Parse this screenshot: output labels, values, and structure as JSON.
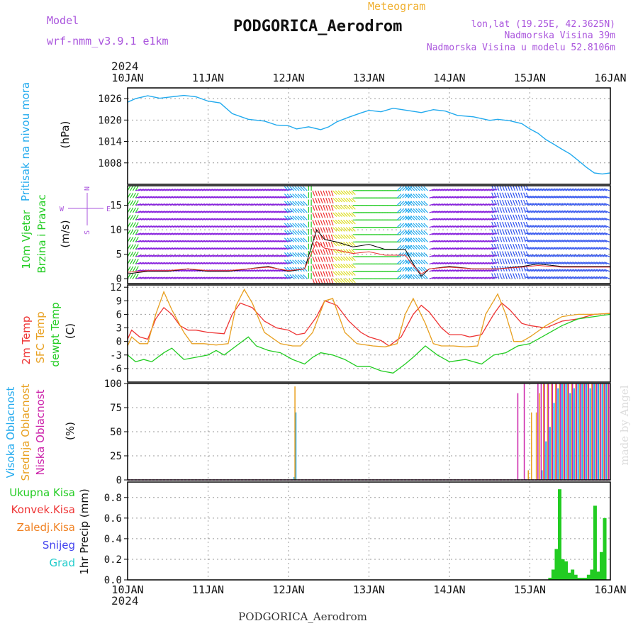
{
  "header": {
    "model_label": "Model",
    "model_name": "wrf-nmm_v3.9.1 e1km",
    "meteogram_label": "Meteogram",
    "station_title": "PODGORICA_Aerodrom",
    "lonlat": "lon,lat (19.25E, 42.3625N)",
    "elevation": "Nadmorska Visina 39m",
    "model_elevation": "Nadmorska Visina u modelu 52.8106m"
  },
  "footer": {
    "station": "PODGORICA_Aerodrom",
    "credit": "made by Angel"
  },
  "colors": {
    "pressure": "#22aaee",
    "temp2m": "#ee3333",
    "sfc_temp": "#e8a020",
    "dewpoint": "#22cc22",
    "high_cloud": "#22aaee",
    "mid_cloud": "#e8a020",
    "low_cloud": "#cc22aa",
    "total_precip": "#22cc22",
    "conv_precip": "#ee3333",
    "freezing": "#f08020",
    "snow": "#4444ee",
    "hail": "#22cccc",
    "model_text": "#aa55dd",
    "meteogram_text": "#f0b030",
    "credit": "#dddddd"
  },
  "chart_data": [
    {
      "panel": "pressure",
      "type": "line",
      "x_ticks": [
        "10JAN",
        "11JAN",
        "12JAN",
        "13JAN",
        "14JAN",
        "15JAN",
        "16JAN"
      ],
      "top_year": "2024",
      "ylabel_main": "Pritisak na nivou mora",
      "ylabel_unit": "(hPa)",
      "yticks": [
        1008,
        1014,
        1020,
        1026
      ],
      "ylim": [
        1002,
        1029
      ],
      "x": [
        0,
        0.1,
        0.25,
        0.4,
        0.55,
        0.7,
        0.85,
        1.0,
        1.15,
        1.3,
        1.5,
        1.7,
        1.85,
        2.0,
        2.1,
        2.25,
        2.4,
        2.5,
        2.6,
        2.75,
        2.9,
        3.0,
        3.15,
        3.3,
        3.5,
        3.65,
        3.8,
        3.95,
        4.1,
        4.3,
        4.5,
        4.6,
        4.75,
        4.9,
        5.0,
        5.1,
        5.2,
        5.3,
        5.4,
        5.5,
        5.6,
        5.7,
        5.8,
        5.9,
        6.0
      ],
      "values": [
        1025,
        1026,
        1026.8,
        1026.1,
        1026.5,
        1026.9,
        1026.5,
        1025.3,
        1024.8,
        1021.8,
        1020.2,
        1019.7,
        1018.6,
        1018.4,
        1017.5,
        1018.1,
        1017.3,
        1018.1,
        1019.5,
        1020.8,
        1022,
        1022.7,
        1022.3,
        1023.3,
        1022.6,
        1022.1,
        1022.9,
        1022.5,
        1021.3,
        1020.9,
        1019.9,
        1020.2,
        1019.8,
        1019,
        1017.5,
        1016.3,
        1014.5,
        1013.2,
        1011.8,
        1010.5,
        1008.7,
        1006.8,
        1005.2,
        1004.9,
        1005.2
      ]
    },
    {
      "panel": "wind",
      "type": "line",
      "ylabel_lines": [
        "10m Vjetar",
        "Brzina i Pravac"
      ],
      "ylabel_unit": "(m/s)",
      "compass": {
        "n": "N",
        "w": "W",
        "e": "E",
        "s": "S"
      },
      "yticks": [
        0,
        5,
        10,
        15
      ],
      "ylim": [
        -1,
        19
      ],
      "speed_x": [
        0,
        0.25,
        0.5,
        0.75,
        1.0,
        1.25,
        1.5,
        1.75,
        2.0,
        2.2,
        2.35,
        2.45,
        2.6,
        2.8,
        3.0,
        3.2,
        3.45,
        3.55,
        3.65,
        3.75,
        4.0,
        4.3,
        4.6,
        4.9,
        5.1,
        5.4,
        5.7,
        6.0
      ],
      "speed_values": [
        1,
        1.5,
        1.5,
        2,
        1.5,
        1.5,
        2,
        2.5,
        1.5,
        2,
        10,
        8,
        7.5,
        6.5,
        7,
        6,
        6,
        3,
        0.5,
        2,
        2.5,
        2,
        2,
        2.5,
        3,
        2.5,
        2.5,
        2.5
      ],
      "direction_bands": [
        {
          "from": 0,
          "to": 0.1,
          "direction": "mixed",
          "color": "#22cc22"
        },
        {
          "from": 0.1,
          "to": 2.0,
          "direction": "WNW",
          "color": "#8822dd"
        },
        {
          "from": 2.0,
          "to": 2.25,
          "direction": "NE",
          "color": "#22aaee"
        },
        {
          "from": 2.25,
          "to": 2.3,
          "direction": "N",
          "color": "#22cc22"
        },
        {
          "from": 2.3,
          "to": 2.55,
          "direction": "SSW",
          "color": "#ee3333"
        },
        {
          "from": 2.55,
          "to": 2.8,
          "direction": "SW",
          "color": "#dddd22"
        },
        {
          "from": 2.8,
          "to": 3.35,
          "direction": "W",
          "color": "#22cc22"
        },
        {
          "from": 3.35,
          "to": 3.5,
          "direction": "NW",
          "color": "#22aaee"
        },
        {
          "from": 3.5,
          "to": 3.75,
          "direction": "NE",
          "color": "#22aaee"
        },
        {
          "from": 3.75,
          "to": 4.1,
          "direction": "WNW",
          "color": "#8822dd"
        },
        {
          "from": 4.1,
          "to": 4.55,
          "direction": "WNW",
          "color": "#8822dd"
        },
        {
          "from": 4.55,
          "to": 5.0,
          "direction": "NNE",
          "color": "#3355ee"
        },
        {
          "from": 5.0,
          "to": 6.0,
          "direction": "ENE",
          "color": "#3355ee"
        }
      ]
    },
    {
      "panel": "temperature",
      "type": "line",
      "ylabel_lines": [
        "2m Temp",
        "SFC Temp",
        "dewpt Temp"
      ],
      "ylabel_unit": "(C)",
      "yticks": [
        -6,
        -3,
        0,
        3,
        6,
        9,
        12
      ],
      "ylim": [
        -9,
        12.5
      ],
      "series": [
        {
          "name": "2m Temp",
          "x": [
            0,
            0.05,
            0.15,
            0.25,
            0.35,
            0.45,
            0.55,
            0.65,
            0.75,
            0.85,
            1.0,
            1.2,
            1.3,
            1.4,
            1.55,
            1.7,
            1.85,
            2.0,
            2.1,
            2.2,
            2.35,
            2.45,
            2.6,
            2.75,
            2.9,
            3.0,
            3.15,
            3.25,
            3.4,
            3.55,
            3.65,
            3.75,
            3.9,
            4.0,
            4.15,
            4.25,
            4.4,
            4.55,
            4.65,
            4.75,
            4.9,
            5.0,
            5.2,
            5.4,
            5.6,
            5.8,
            6.0
          ],
          "values": [
            0.5,
            2.5,
            1,
            0.5,
            5,
            7.5,
            6,
            3.5,
            2.5,
            2.5,
            2,
            1.7,
            6,
            8.5,
            7.5,
            4.5,
            3,
            2.5,
            1.5,
            1.8,
            5.5,
            9,
            8,
            4.5,
            2,
            1,
            0.2,
            -1,
            1,
            6,
            8,
            6.5,
            3,
            1.5,
            1.5,
            1,
            1.5,
            6,
            8.5,
            7,
            4,
            3.5,
            3,
            4.5,
            5,
            6,
            6.2
          ]
        },
        {
          "name": "SFC Temp",
          "x": [
            0,
            0.05,
            0.15,
            0.25,
            0.35,
            0.45,
            0.55,
            0.7,
            0.8,
            0.95,
            1.1,
            1.25,
            1.35,
            1.45,
            1.55,
            1.7,
            1.9,
            2.05,
            2.15,
            2.3,
            2.45,
            2.55,
            2.7,
            2.85,
            3.05,
            3.2,
            3.35,
            3.45,
            3.55,
            3.7,
            3.8,
            3.9,
            4.05,
            4.2,
            4.35,
            4.45,
            4.6,
            4.7,
            4.8,
            4.9,
            5.0,
            5.2,
            5.4,
            5.6,
            5.8,
            6.0
          ],
          "values": [
            -1,
            1,
            -0.5,
            -0.5,
            6,
            11,
            7,
            2,
            -0.5,
            -0.5,
            -0.8,
            -0.5,
            8,
            11.5,
            8.5,
            2,
            -0.5,
            -1,
            -1,
            2,
            9,
            9.5,
            2,
            -0.5,
            -1,
            -1.2,
            -0.5,
            6,
            9.5,
            4,
            -0.5,
            -1,
            -1,
            -1.2,
            -1,
            6,
            10.5,
            6,
            0,
            0,
            1,
            3.5,
            5.5,
            6,
            6,
            6.2
          ]
        },
        {
          "name": "dewpt Temp",
          "x": [
            0,
            0.1,
            0.2,
            0.3,
            0.45,
            0.55,
            0.7,
            0.85,
            1.0,
            1.1,
            1.2,
            1.35,
            1.5,
            1.6,
            1.75,
            1.9,
            2.05,
            2.2,
            2.3,
            2.4,
            2.55,
            2.7,
            2.85,
            3.0,
            3.15,
            3.3,
            3.45,
            3.55,
            3.7,
            3.85,
            4.0,
            4.2,
            4.4,
            4.55,
            4.7,
            4.85,
            5.0,
            5.2,
            5.4,
            5.6,
            5.8,
            6.0
          ],
          "values": [
            -3,
            -4.5,
            -4,
            -4.5,
            -2.5,
            -1.5,
            -4,
            -3.5,
            -3,
            -2,
            -3,
            -1,
            1,
            -1,
            -2,
            -2.5,
            -4,
            -5,
            -3.5,
            -2.5,
            -3,
            -4,
            -5.5,
            -5.5,
            -6.5,
            -7,
            -5,
            -3.5,
            -1,
            -3,
            -4.5,
            -4,
            -5,
            -3,
            -2.5,
            -1,
            -0.5,
            1.5,
            3.5,
            5,
            5.5,
            6
          ]
        }
      ]
    },
    {
      "panel": "cloud",
      "type": "bar",
      "ylabel_lines": [
        "Visoka Oblacnost",
        "Srednja Oblacnost",
        "Niska Oblacnost"
      ],
      "ylabel_unit": "(%)",
      "yticks": [
        0,
        25,
        50,
        75,
        100
      ],
      "ylim": [
        0,
        100
      ],
      "series": [
        {
          "name": "Visoka Oblacnost",
          "x": [
            2.07,
            2.09,
            5.15,
            5.2,
            5.25,
            5.3,
            5.35,
            5.4,
            5.45,
            5.5,
            5.55,
            5.6,
            5.65,
            5.7,
            5.75,
            5.8,
            5.85,
            5.9,
            5.95
          ],
          "values": [
            3,
            70,
            10,
            40,
            55,
            80,
            95,
            100,
            100,
            90,
            95,
            100,
            100,
            100,
            95,
            100,
            100,
            100,
            100
          ]
        },
        {
          "name": "Srednja Oblacnost",
          "x": [
            2.08,
            4.98,
            5.02,
            5.08,
            5.12,
            5.17,
            5.22,
            5.27,
            5.32,
            5.37,
            5.42,
            5.47,
            5.52,
            5.57,
            5.62,
            5.67,
            5.72,
            5.77,
            5.82,
            5.87,
            5.92,
            5.97
          ],
          "values": [
            97,
            10,
            70,
            70,
            90,
            100,
            100,
            100,
            100,
            100,
            100,
            100,
            100,
            100,
            100,
            100,
            100,
            100,
            100,
            100,
            100,
            100
          ]
        },
        {
          "name": "Niska Oblacnost",
          "x": [
            4.85,
            4.93,
            5.1,
            5.14,
            5.18,
            5.23,
            5.28,
            5.33,
            5.38,
            5.43,
            5.48,
            5.53,
            5.58,
            5.63,
            5.68,
            5.73,
            5.78,
            5.83,
            5.88,
            5.93,
            5.98
          ],
          "values": [
            90,
            100,
            100,
            100,
            100,
            100,
            100,
            100,
            100,
            100,
            100,
            100,
            100,
            100,
            100,
            100,
            100,
            100,
            100,
            100,
            100
          ]
        }
      ]
    },
    {
      "panel": "precip",
      "type": "bar",
      "legend": [
        "Ukupna Kisa",
        "Konvek.Kisa",
        "Zaledj.Kisa",
        "Snijeg",
        "Grad"
      ],
      "ylabel_main": "1hr Precip (mm)",
      "yticks": [
        0,
        0.2,
        0.4,
        0.6,
        0.8
      ],
      "ylim": [
        0,
        0.95
      ],
      "bottom_year": "2024",
      "x": [
        5.25,
        5.29,
        5.33,
        5.37,
        5.41,
        5.45,
        5.49,
        5.53,
        5.57,
        5.61,
        5.65,
        5.69,
        5.73,
        5.77,
        5.81,
        5.85,
        5.89,
        5.93,
        5.97
      ],
      "values": [
        0.02,
        0.1,
        0.3,
        0.88,
        0.2,
        0.18,
        0.07,
        0.1,
        0.05,
        0.02,
        0.02,
        0.02,
        0.05,
        0.1,
        0.72,
        0.08,
        0.27,
        0.6,
        0.0
      ],
      "series_name": "Ukupna Kisa"
    }
  ]
}
